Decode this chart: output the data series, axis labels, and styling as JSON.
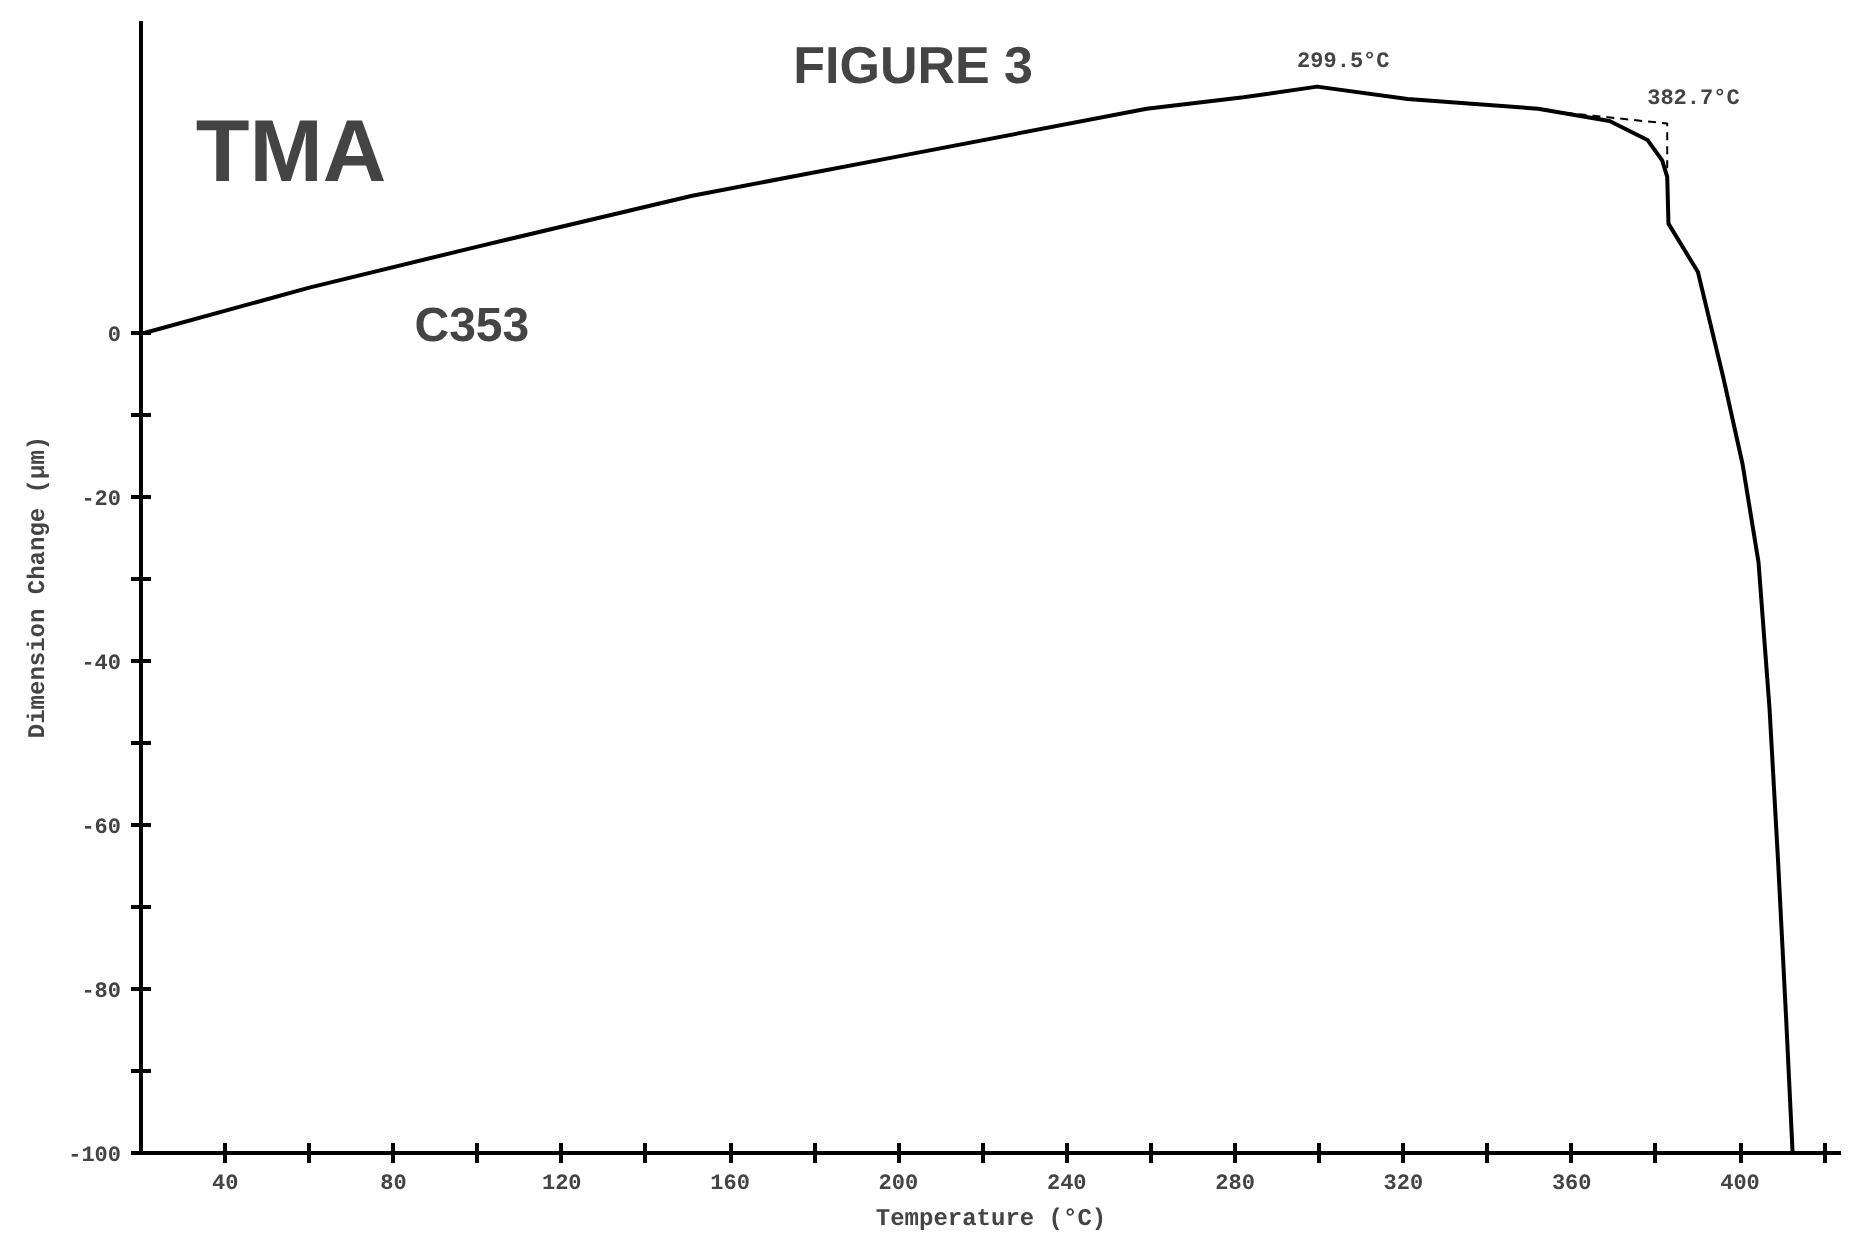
{
  "chart_data": {
    "type": "line",
    "title": "FIGURE 3",
    "xlabel": "Temperature (°C)",
    "ylabel": "Dimension Change (µm)",
    "annotations": [
      "TMA",
      "C353",
      {
        "text": "299.5°C",
        "x": 299.5,
        "y": 30
      },
      {
        "text": "382.7°C",
        "x": 382.7,
        "y": 25.5
      }
    ],
    "series": [
      {
        "color": "#000000",
        "line_style": "solid",
        "x": [
          21,
          60,
          100,
          151,
          200,
          259,
          282,
          299.5,
          321,
          352,
          369,
          378,
          381.5,
          382.7,
          383,
          390,
          396,
          400.6,
          404.4,
          407,
          409,
          411,
          412.5
        ],
        "values": [
          0,
          5.5,
          10.5,
          16.7,
          21.5,
          27.3,
          28.7,
          30,
          28.5,
          27.3,
          25.8,
          23.5,
          21,
          19,
          13.3,
          7.4,
          -5.4,
          -16,
          -28,
          -45.7,
          -64,
          -84,
          -100
        ]
      },
      {
        "color": "#000000",
        "line_style": "dashed",
        "x": [
          355,
          382.7,
          382.7
        ],
        "values": [
          27,
          25.5,
          19
        ]
      }
    ],
    "xlim": [
      20,
      424
    ],
    "ylim": [
      -100,
      38
    ],
    "xticks": [
      {
        "value": 40,
        "label": "40"
      },
      {
        "value": 60,
        "label": null
      },
      {
        "value": 80,
        "label": "80"
      },
      {
        "value": 100,
        "label": null
      },
      {
        "value": 120,
        "label": "120"
      },
      {
        "value": 140,
        "label": null
      },
      {
        "value": 160,
        "label": "160"
      },
      {
        "value": 180,
        "label": null
      },
      {
        "value": 200,
        "label": "200"
      },
      {
        "value": 220,
        "label": null
      },
      {
        "value": 240,
        "label": "240"
      },
      {
        "value": 260,
        "label": null
      },
      {
        "value": 280,
        "label": "280"
      },
      {
        "value": 300,
        "label": null
      },
      {
        "value": 320,
        "label": "320"
      },
      {
        "value": 340,
        "label": null
      },
      {
        "value": 360,
        "label": "360"
      },
      {
        "value": 380,
        "label": null
      },
      {
        "value": 400,
        "label": "400"
      },
      {
        "value": 420,
        "label": null
      }
    ],
    "yticks": [
      0,
      {
        "value": -10,
        "label": null
      },
      -20,
      {
        "value": -30,
        "label": null
      },
      -40,
      {
        "value": -50,
        "label": null
      },
      -60,
      {
        "value": -70,
        "label": null
      },
      -80,
      {
        "value": -90,
        "label": null
      },
      -100
    ],
    "grid": false
  }
}
